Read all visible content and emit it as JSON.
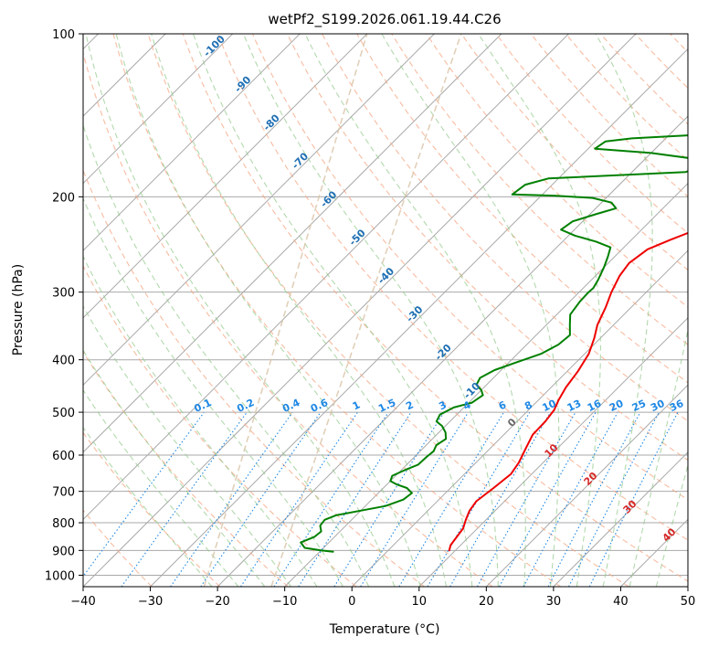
{
  "chart_data": {
    "type": "line",
    "title": "wetPf2_S199.2026.061.19.44.C26",
    "xlabel": "Temperature (°C)",
    "ylabel": "Pressure (hPa)",
    "xlim": [
      -40,
      50
    ],
    "ylim": [
      1050,
      100
    ],
    "y_scale": "log",
    "grid": true,
    "x_ticks": [
      -40,
      -30,
      -20,
      -10,
      0,
      10,
      20,
      30,
      40,
      50
    ],
    "y_ticks": [
      100,
      200,
      300,
      400,
      500,
      600,
      700,
      800,
      900,
      1000
    ],
    "series": [
      {
        "color": "#ee0000",
        "points": [
          [
            9.1,
            900
          ],
          [
            8.5,
            880
          ],
          [
            8.2,
            850
          ],
          [
            7.9,
            820
          ],
          [
            7.0,
            790
          ],
          [
            6.2,
            760
          ],
          [
            5.8,
            730
          ],
          [
            6.4,
            690
          ],
          [
            6.9,
            650
          ],
          [
            6.4,
            620
          ],
          [
            5.2,
            580
          ],
          [
            4.3,
            550
          ],
          [
            4.2,
            520
          ],
          [
            3.8,
            495
          ],
          [
            3.0,
            475
          ],
          [
            2.2,
            450
          ],
          [
            1.6,
            420
          ],
          [
            0.6,
            390
          ],
          [
            -0.9,
            365
          ],
          [
            -2.4,
            345
          ],
          [
            -3.8,
            320
          ],
          [
            -5.2,
            300
          ],
          [
            -6.4,
            280
          ],
          [
            -6.9,
            265
          ],
          [
            -6.2,
            250
          ],
          [
            -4.2,
            240
          ],
          [
            -2.3,
            232
          ],
          [
            -0.3,
            220
          ],
          [
            1.3,
            208
          ],
          [
            3.8,
            198
          ],
          [
            7.5,
            188
          ],
          [
            9.4,
            178
          ],
          [
            10.4,
            170
          ],
          [
            11.6,
            160
          ],
          [
            13.8,
            150
          ],
          [
            16.6,
            140
          ],
          [
            19.2,
            130
          ],
          [
            21.9,
            120
          ],
          [
            25.0,
            110
          ],
          [
            28.5,
            100
          ]
        ]
      },
      {
        "color": "#008000",
        "points": [
          [
            -8.0,
            905
          ],
          [
            -10.0,
            900
          ],
          [
            -12.8,
            890
          ],
          [
            -14.2,
            870
          ],
          [
            -13.0,
            850
          ],
          [
            -12.8,
            830
          ],
          [
            -13.8,
            810
          ],
          [
            -14.0,
            790
          ],
          [
            -13.0,
            775
          ],
          [
            -10.0,
            760
          ],
          [
            -7.0,
            745
          ],
          [
            -5.3,
            725
          ],
          [
            -5.0,
            705
          ],
          [
            -6.5,
            690
          ],
          [
            -8.5,
            680
          ],
          [
            -10.0,
            670
          ],
          [
            -10.5,
            655
          ],
          [
            -9.5,
            640
          ],
          [
            -8.3,
            625
          ],
          [
            -8.2,
            605
          ],
          [
            -8.0,
            590
          ],
          [
            -8.5,
            575
          ],
          [
            -8.0,
            560
          ],
          [
            -9.0,
            545
          ],
          [
            -10.5,
            530
          ],
          [
            -12.0,
            520
          ],
          [
            -12.5,
            505
          ],
          [
            -11.5,
            490
          ],
          [
            -9.5,
            480
          ],
          [
            -9.0,
            465
          ],
          [
            -10.0,
            455
          ],
          [
            -11.5,
            445
          ],
          [
            -12.0,
            432
          ],
          [
            -11.0,
            418
          ],
          [
            -9.0,
            405
          ],
          [
            -6.5,
            390
          ],
          [
            -5.3,
            375
          ],
          [
            -5.0,
            360
          ],
          [
            -6.5,
            345
          ],
          [
            -8.0,
            330
          ],
          [
            -8.5,
            312
          ],
          [
            -8.6,
            300
          ],
          [
            -8.5,
            295
          ],
          [
            -9.0,
            285
          ],
          [
            -10.0,
            270
          ],
          [
            -11.0,
            258
          ],
          [
            -12.0,
            248
          ],
          [
            -15.0,
            242
          ],
          [
            -19.0,
            236
          ],
          [
            -22.0,
            230
          ],
          [
            -21.5,
            222
          ],
          [
            -19.0,
            215
          ],
          [
            -17.0,
            210
          ],
          [
            -18.5,
            205
          ],
          [
            -22.0,
            201
          ],
          [
            -28.0,
            199
          ],
          [
            -34.5,
            198
          ],
          [
            -34.0,
            190
          ],
          [
            -31.5,
            185
          ],
          [
            -20.0,
            182
          ],
          [
            -12.0,
            180
          ],
          [
            -10.5,
            175
          ],
          [
            -13.0,
            170
          ],
          [
            -20.0,
            166
          ],
          [
            -29.0,
            163
          ],
          [
            -28.5,
            158
          ],
          [
            -25.0,
            156
          ],
          [
            -17.0,
            154
          ],
          [
            -11.5,
            150
          ],
          [
            -10.0,
            140
          ],
          [
            -9.0,
            130
          ],
          [
            -8.0,
            125
          ],
          [
            -7.0,
            120
          ],
          [
            -5.5,
            110
          ],
          [
            -1.5,
            100
          ]
        ]
      }
    ],
    "isotherm_skew_deg": 45,
    "dry_adiabat_labels": [
      "-100",
      "-90",
      "-80",
      "-70",
      "-60",
      "-50",
      "-40",
      "-30",
      "-20",
      "-10"
    ],
    "moist_adiabat_labels": [
      "0",
      "10",
      "20",
      "30",
      "40"
    ],
    "mixing_ratio_labels": [
      "0.1",
      "0.2",
      "0.4",
      "0.6",
      "1",
      "1.5",
      "2",
      "3",
      "4",
      "6",
      "8",
      "10",
      "13",
      "16",
      "20",
      "25",
      "30",
      "36"
    ],
    "colors": {
      "isotherm": "#a9a9a9",
      "dry_adiabat": "#f4a582",
      "moist_adiabat": "#92c98a",
      "mixing_ratio": "#1e88e5",
      "dry_label": "#1f6fb4",
      "moist_label_zero": "#666666",
      "moist_label": "#d62728",
      "condensation": "#d9c4a8"
    }
  }
}
